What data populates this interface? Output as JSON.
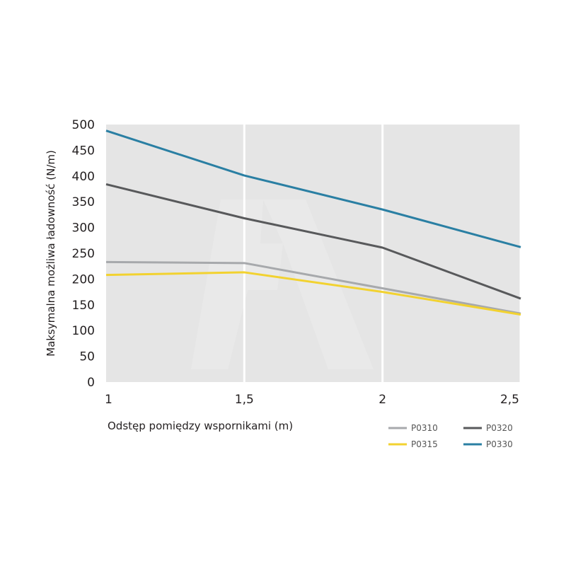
{
  "chart_data": {
    "type": "line",
    "title": "",
    "xlabel": "Odstęp pomiędzy wspornikami (m)",
    "ylabel": "Maksymalna możliwa ładowność (N/m)",
    "x": [
      1,
      1.5,
      2,
      2.5
    ],
    "x_tick_labels": [
      "1",
      "1,5",
      "2",
      "2,5"
    ],
    "xlim": [
      1,
      2.5
    ],
    "ylim": [
      0,
      500
    ],
    "y_ticks": [
      0,
      50,
      100,
      150,
      200,
      250,
      300,
      350,
      400,
      450,
      500
    ],
    "y_tick_labels": [
      "0",
      "50",
      "100",
      "150",
      "200",
      "250",
      "300",
      "350",
      "400",
      "450",
      "500"
    ],
    "grid": true,
    "legend_position": "bottom-right",
    "series": [
      {
        "name": "P0310",
        "values": [
          233,
          231,
          182,
          133
        ],
        "color": "#a7a9ac"
      },
      {
        "name": "P0315",
        "values": [
          208,
          213,
          175,
          131
        ],
        "color": "#f2d230"
      },
      {
        "name": "P0320",
        "values": [
          384,
          318,
          261,
          162
        ],
        "color": "#58595b"
      },
      {
        "name": "P0330",
        "values": [
          488,
          401,
          335,
          262
        ],
        "color": "#2a7fa3"
      }
    ],
    "plot_background": "#e5e5e5",
    "grid_color": "#ffffff"
  }
}
